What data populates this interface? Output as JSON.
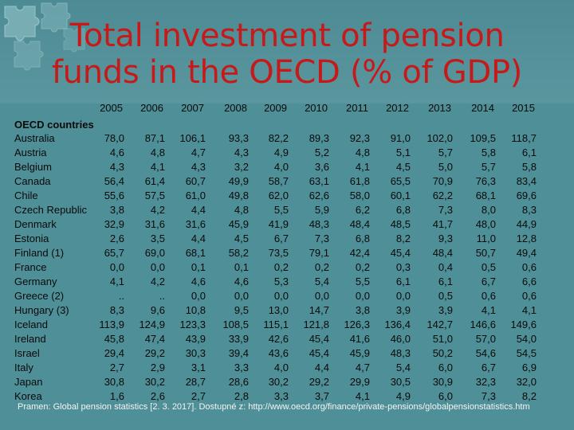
{
  "title": {
    "line1": "Total investment of pension",
    "line2": "funds in the OECD (% of GDP)"
  },
  "table": {
    "years": [
      "2005",
      "2006",
      "2007",
      "2008",
      "2009",
      "2010",
      "2011",
      "2012",
      "2013",
      "2014",
      "2015"
    ],
    "group_label": "OECD countries",
    "rows": [
      {
        "country": "Australia",
        "values": [
          "78,0",
          "87,1",
          "106,1",
          "93,3",
          "82,2",
          "89,3",
          "92,3",
          "91,0",
          "102,0",
          "109,5",
          "118,7"
        ]
      },
      {
        "country": "Austria",
        "values": [
          "4,6",
          "4,8",
          "4,7",
          "4,3",
          "4,9",
          "5,2",
          "4,8",
          "5,1",
          "5,7",
          "5,8",
          "6,1"
        ]
      },
      {
        "country": "Belgium",
        "values": [
          "4,3",
          "4,1",
          "4,3",
          "3,2",
          "4,0",
          "3,6",
          "4,1",
          "4,5",
          "5,0",
          "5,7",
          "5,8"
        ]
      },
      {
        "country": "Canada",
        "values": [
          "56,4",
          "61,4",
          "60,7",
          "49,9",
          "58,7",
          "63,1",
          "61,8",
          "65,5",
          "70,9",
          "76,3",
          "83,4"
        ]
      },
      {
        "country": "Chile",
        "values": [
          "55,6",
          "57,5",
          "61,0",
          "49,8",
          "62,0",
          "62,6",
          "58,0",
          "60,1",
          "62,2",
          "68,1",
          "69,6"
        ]
      },
      {
        "country": "Czech Republic",
        "values": [
          "3,8",
          "4,2",
          "4,4",
          "4,8",
          "5,5",
          "5,9",
          "6,2",
          "6,8",
          "7,3",
          "8,0",
          "8,3"
        ]
      },
      {
        "country": "Denmark",
        "values": [
          "32,9",
          "31,6",
          "31,6",
          "45,9",
          "41,9",
          "48,3",
          "48,4",
          "48,5",
          "41,7",
          "48,0",
          "44,9"
        ]
      },
      {
        "country": "Estonia",
        "values": [
          "2,6",
          "3,5",
          "4,4",
          "4,5",
          "6,7",
          "7,3",
          "6,8",
          "8,2",
          "9,3",
          "11,0",
          "12,8"
        ]
      },
      {
        "country": "Finland (1)",
        "values": [
          "65,7",
          "69,0",
          "68,1",
          "58,2",
          "73,5",
          "79,1",
          "42,4",
          "45,4",
          "48,4",
          "50,7",
          "49,4"
        ]
      },
      {
        "country": "France",
        "values": [
          "0,0",
          "0,0",
          "0,1",
          "0,1",
          "0,2",
          "0,2",
          "0,2",
          "0,3",
          "0,4",
          "0,5",
          "0,6"
        ]
      },
      {
        "country": "Germany",
        "values": [
          "4,1",
          "4,2",
          "4,6",
          "4,6",
          "5,3",
          "5,4",
          "5,5",
          "6,1",
          "6,1",
          "6,7",
          "6,6"
        ]
      },
      {
        "country": "Greece (2)",
        "values": [
          "..",
          "..",
          "0,0",
          "0,0",
          "0,0",
          "0,0",
          "0,0",
          "0,0",
          "0,5",
          "0,6",
          "0,6"
        ]
      },
      {
        "country": "Hungary (3)",
        "values": [
          "8,3",
          "9,6",
          "10,8",
          "9,5",
          "13,0",
          "14,7",
          "3,8",
          "3,9",
          "3,9",
          "4,1",
          "4,1"
        ]
      },
      {
        "country": "Iceland",
        "values": [
          "113,9",
          "124,9",
          "123,3",
          "108,5",
          "115,1",
          "121,8",
          "126,3",
          "136,4",
          "142,7",
          "146,6",
          "149,6"
        ]
      },
      {
        "country": "Ireland",
        "values": [
          "45,8",
          "47,4",
          "43,9",
          "33,9",
          "42,6",
          "45,4",
          "41,6",
          "46,0",
          "51,0",
          "57,0",
          "54,0"
        ]
      },
      {
        "country": "Israel",
        "values": [
          "29,4",
          "29,2",
          "30,3",
          "39,4",
          "43,6",
          "45,4",
          "45,9",
          "48,3",
          "50,2",
          "54,6",
          "54,5"
        ]
      },
      {
        "country": "Italy",
        "values": [
          "2,7",
          "2,9",
          "3,1",
          "3,3",
          "4,0",
          "4,4",
          "4,7",
          "5,4",
          "6,0",
          "6,7",
          "6,9"
        ]
      },
      {
        "country": "Japan",
        "values": [
          "30,8",
          "30,2",
          "28,7",
          "28,6",
          "30,2",
          "29,2",
          "29,9",
          "30,5",
          "30,9",
          "32,3",
          "32,0"
        ]
      },
      {
        "country": "Korea",
        "values": [
          "1,6",
          "2,6",
          "2,7",
          "2,8",
          "3,3",
          "3,7",
          "4,1",
          "4,9",
          "6,0",
          "7,3",
          "8,2"
        ]
      }
    ]
  },
  "source": "Pramen: Global pension statistics [2. 3. 2017]. Dostupné z: http://www.oecd.org/finance/private-pensions/globalpensionstatistics.htm",
  "colors": {
    "background": "#4f8f97",
    "title": "#c61a1a",
    "text": "#0a0a0a",
    "source_text": "#f4f4f4"
  },
  "icons": {
    "corner_decoration": "puzzle-pieces-icon"
  }
}
